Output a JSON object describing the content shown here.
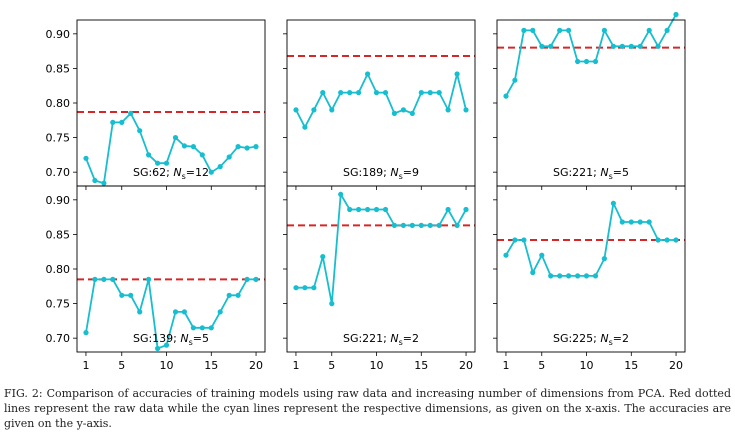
{
  "figure": {
    "caption": "FIG. 2: Comparison of accuracies of training models using raw data and increasing number of dimensions from PCA. Red dotted lines represent the raw data while the cyan lines represent the respective dimensions, as given on the x-axis. The accuracies are given on the y-axis."
  },
  "colors": {
    "series": "#17becf",
    "raw": "#d62728",
    "axis": "#000000"
  },
  "chart_data": [
    {
      "type": "line",
      "grid": false,
      "ylim": [
        0.68,
        0.92
      ],
      "xlim": [
        0,
        21
      ],
      "yticks": [
        0.7,
        0.75,
        0.8,
        0.85,
        0.9
      ],
      "xticks": [
        1,
        5,
        10,
        15,
        20
      ],
      "annotation": {
        "prefix": "SG:62; ",
        "n": "N",
        "sub": "s",
        "suffix": "=12"
      },
      "reference": 0.787,
      "x": [
        1,
        2,
        3,
        4,
        5,
        6,
        7,
        8,
        9,
        10,
        11,
        12,
        13,
        14,
        15,
        16,
        17,
        18,
        19,
        20
      ],
      "values": [
        0.72,
        0.688,
        0.684,
        0.772,
        0.772,
        0.785,
        0.76,
        0.725,
        0.713,
        0.713,
        0.75,
        0.738,
        0.737,
        0.725,
        0.7,
        0.708,
        0.722,
        0.737,
        0.735,
        0.737
      ]
    },
    {
      "type": "line",
      "grid": false,
      "ylim": [
        0.68,
        0.92
      ],
      "xlim": [
        0,
        21
      ],
      "yticks": [
        0.7,
        0.75,
        0.8,
        0.85,
        0.9
      ],
      "xticks": [
        1,
        5,
        10,
        15,
        20
      ],
      "annotation": {
        "prefix": "SG:189; ",
        "n": "N",
        "sub": "s",
        "suffix": "=9"
      },
      "reference": 0.868,
      "x": [
        1,
        2,
        3,
        4,
        5,
        6,
        7,
        8,
        9,
        10,
        11,
        12,
        13,
        14,
        15,
        16,
        17,
        18,
        19,
        20
      ],
      "values": [
        0.79,
        0.765,
        0.79,
        0.815,
        0.79,
        0.815,
        0.815,
        0.815,
        0.842,
        0.815,
        0.815,
        0.785,
        0.79,
        0.785,
        0.815,
        0.815,
        0.815,
        0.79,
        0.842,
        0.79
      ]
    },
    {
      "type": "line",
      "grid": false,
      "ylim": [
        0.68,
        0.92
      ],
      "xlim": [
        0,
        21
      ],
      "yticks": [
        0.7,
        0.75,
        0.8,
        0.85,
        0.9
      ],
      "xticks": [
        1,
        5,
        10,
        15,
        20
      ],
      "annotation": {
        "prefix": "SG:221; ",
        "n": "N",
        "sub": "s",
        "suffix": "=5"
      },
      "reference": 0.88,
      "x": [
        1,
        2,
        3,
        4,
        5,
        6,
        7,
        8,
        9,
        10,
        11,
        12,
        13,
        14,
        15,
        16,
        17,
        18,
        19,
        20
      ],
      "values": [
        0.81,
        0.833,
        0.905,
        0.905,
        0.882,
        0.882,
        0.905,
        0.905,
        0.86,
        0.86,
        0.86,
        0.905,
        0.882,
        0.882,
        0.882,
        0.882,
        0.905,
        0.882,
        0.905,
        0.928
      ]
    },
    {
      "type": "line",
      "grid": false,
      "ylim": [
        0.68,
        0.92
      ],
      "xlim": [
        0,
        21
      ],
      "yticks": [
        0.7,
        0.75,
        0.8,
        0.85,
        0.9
      ],
      "xticks": [
        1,
        5,
        10,
        15,
        20
      ],
      "annotation": {
        "prefix": "SG:139; ",
        "n": "N",
        "sub": "s",
        "suffix": "=5"
      },
      "reference": 0.785,
      "x": [
        1,
        2,
        3,
        4,
        5,
        6,
        7,
        8,
        9,
        10,
        11,
        12,
        13,
        14,
        15,
        16,
        17,
        18,
        19,
        20
      ],
      "values": [
        0.708,
        0.785,
        0.785,
        0.785,
        0.762,
        0.762,
        0.738,
        0.785,
        0.685,
        0.69,
        0.738,
        0.738,
        0.715,
        0.715,
        0.715,
        0.738,
        0.762,
        0.762,
        0.785,
        0.785
      ]
    },
    {
      "type": "line",
      "grid": false,
      "ylim": [
        0.68,
        0.92
      ],
      "xlim": [
        0,
        21
      ],
      "yticks": [
        0.7,
        0.75,
        0.8,
        0.85,
        0.9
      ],
      "xticks": [
        1,
        5,
        10,
        15,
        20
      ],
      "annotation": {
        "prefix": "SG:221; ",
        "n": "N",
        "sub": "s",
        "suffix": "=2"
      },
      "reference": 0.863,
      "x": [
        1,
        2,
        3,
        4,
        5,
        6,
        7,
        8,
        9,
        10,
        11,
        12,
        13,
        14,
        15,
        16,
        17,
        18,
        19,
        20
      ],
      "values": [
        0.773,
        0.773,
        0.773,
        0.818,
        0.75,
        0.908,
        0.886,
        0.886,
        0.886,
        0.886,
        0.886,
        0.863,
        0.863,
        0.863,
        0.863,
        0.863,
        0.863,
        0.886,
        0.863,
        0.886
      ]
    },
    {
      "type": "line",
      "grid": false,
      "ylim": [
        0.68,
        0.92
      ],
      "xlim": [
        0,
        21
      ],
      "yticks": [
        0.7,
        0.75,
        0.8,
        0.85,
        0.9
      ],
      "xticks": [
        1,
        5,
        10,
        15,
        20
      ],
      "annotation": {
        "prefix": "SG:225; ",
        "n": "N",
        "sub": "s",
        "suffix": "=2"
      },
      "reference": 0.842,
      "x": [
        1,
        2,
        3,
        4,
        5,
        6,
        7,
        8,
        9,
        10,
        11,
        12,
        13,
        14,
        15,
        16,
        17,
        18,
        19,
        20
      ],
      "values": [
        0.82,
        0.842,
        0.842,
        0.795,
        0.82,
        0.79,
        0.79,
        0.79,
        0.79,
        0.79,
        0.79,
        0.815,
        0.895,
        0.868,
        0.868,
        0.868,
        0.868,
        0.842,
        0.842,
        0.842
      ]
    }
  ]
}
